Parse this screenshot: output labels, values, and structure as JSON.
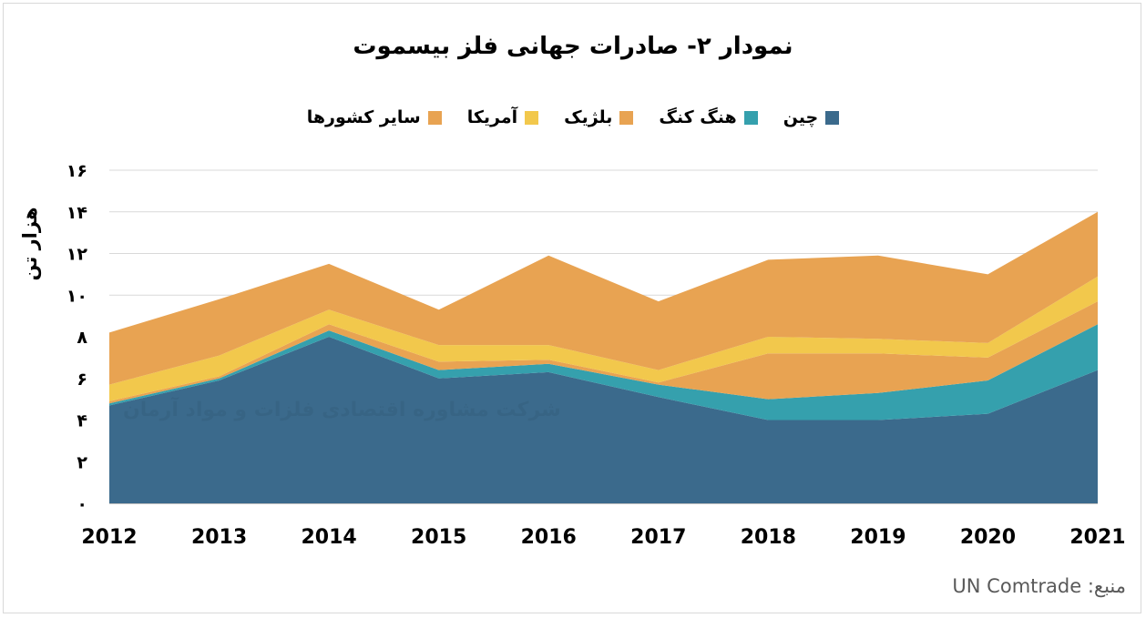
{
  "title": "نمودار ۲- صادرات جهانی فلز بیسموت",
  "source": "منبع: UN Comtrade",
  "watermark": "شرکت مشاوره اقتصادی فلزات و مواد آرمان",
  "chart_data": {
    "type": "area",
    "stacked": true,
    "title": "نمودار ۲- صادرات جهانی فلز بیسموت",
    "ylabel": "هزار تن",
    "xlabel": "",
    "ylim": [
      0,
      16
    ],
    "y_ticks": [
      "۰",
      "۲",
      "۴",
      "۶",
      "۸",
      "۱۰",
      "۱۲",
      "۱۴",
      "۱۶"
    ],
    "x": [
      "2012",
      "2013",
      "2014",
      "2015",
      "2016",
      "2017",
      "2018",
      "2019",
      "2020",
      "2021"
    ],
    "grid": true,
    "legend_position": "top",
    "series": [
      {
        "name": "چین",
        "color": "#3b6a8c",
        "values": [
          4.7,
          5.9,
          8.0,
          6.0,
          6.3,
          5.1,
          4.0,
          4.0,
          4.3,
          6.4
        ]
      },
      {
        "name": "هنگ کنگ",
        "color": "#35a0ad",
        "values": [
          0.1,
          0.1,
          0.3,
          0.4,
          0.4,
          0.6,
          1.0,
          1.3,
          1.6,
          2.2
        ]
      },
      {
        "name": "بلژیک",
        "color": "#e8a352",
        "values": [
          0.1,
          0.1,
          0.3,
          0.4,
          0.2,
          0.1,
          2.2,
          1.9,
          1.1,
          1.1
        ]
      },
      {
        "name": "آمریکا",
        "color": "#f2c84c",
        "values": [
          0.8,
          1.0,
          0.7,
          0.8,
          0.7,
          0.6,
          0.8,
          0.7,
          0.7,
          1.2
        ]
      },
      {
        "name": "سایر کشورها",
        "color": "#e8a352",
        "values": [
          2.5,
          2.7,
          2.2,
          1.7,
          4.3,
          3.3,
          3.7,
          4.0,
          3.3,
          3.1
        ]
      }
    ]
  }
}
